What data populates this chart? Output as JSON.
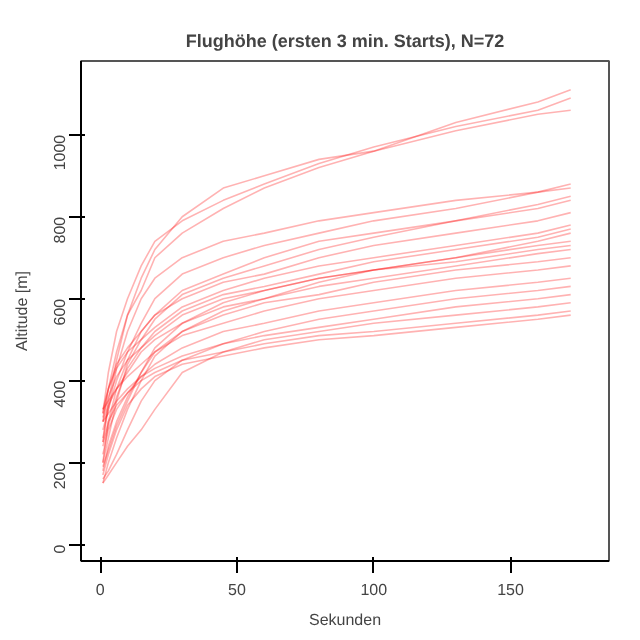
{
  "chart_data": {
    "type": "line",
    "title": "Flughöhe (ersten 3 min. Starts), N=72",
    "xlabel": "Sekunden",
    "ylabel": "Altitude [m]",
    "x": [
      1,
      3,
      6,
      10,
      15,
      20,
      30,
      45,
      60,
      80,
      100,
      130,
      160,
      172
    ],
    "xlim": [
      -7,
      186
    ],
    "ylim": [
      -40,
      1180
    ],
    "xticks": [
      0,
      50,
      100,
      150
    ],
    "yticks": [
      0,
      200,
      400,
      600,
      800,
      1000
    ],
    "grid": false,
    "line_style": "solid",
    "series": [
      {
        "color": "#ff0000",
        "values": [
          300,
          380,
          470,
          560,
          620,
          700,
          760,
          820,
          870,
          920,
          960,
          1030,
          1080,
          1110
        ]
      },
      {
        "color": "#ff0000",
        "values": [
          320,
          420,
          520,
          600,
          680,
          740,
          790,
          840,
          880,
          930,
          970,
          1020,
          1060,
          1090
        ]
      },
      {
        "color": "#ff0000",
        "values": [
          250,
          350,
          450,
          560,
          650,
          720,
          800,
          870,
          900,
          940,
          960,
          1010,
          1050,
          1060
        ]
      },
      {
        "color": "#ff0000",
        "values": [
          200,
          300,
          380,
          450,
          520,
          560,
          620,
          660,
          700,
          740,
          760,
          790,
          820,
          840
        ]
      },
      {
        "color": "#ff0000",
        "values": [
          320,
          380,
          440,
          480,
          520,
          560,
          600,
          640,
          660,
          700,
          730,
          760,
          790,
          810
        ]
      },
      {
        "color": "#ff0000",
        "values": [
          150,
          200,
          260,
          330,
          400,
          460,
          520,
          570,
          600,
          640,
          670,
          700,
          740,
          760
        ]
      },
      {
        "color": "#ff0000",
        "values": [
          300,
          340,
          380,
          420,
          470,
          500,
          540,
          580,
          600,
          630,
          650,
          680,
          710,
          720
        ]
      },
      {
        "color": "#ff0000",
        "values": [
          180,
          240,
          300,
          360,
          420,
          470,
          520,
          560,
          590,
          610,
          640,
          670,
          690,
          700
        ]
      },
      {
        "color": "#ff0000",
        "values": [
          330,
          350,
          380,
          410,
          440,
          470,
          510,
          540,
          570,
          600,
          620,
          650,
          670,
          680
        ]
      },
      {
        "color": "#ff0000",
        "values": [
          220,
          280,
          330,
          370,
          410,
          440,
          480,
          520,
          540,
          570,
          590,
          620,
          640,
          650
        ]
      },
      {
        "color": "#ff0000",
        "values": [
          160,
          180,
          220,
          280,
          350,
          400,
          450,
          490,
          520,
          550,
          570,
          600,
          620,
          630
        ]
      },
      {
        "color": "#ff0000",
        "values": [
          300,
          320,
          350,
          380,
          410,
          430,
          460,
          490,
          510,
          530,
          550,
          580,
          600,
          610
        ]
      },
      {
        "color": "#ff0000",
        "values": [
          150,
          170,
          200,
          240,
          280,
          330,
          420,
          470,
          500,
          520,
          540,
          560,
          580,
          590
        ]
      },
      {
        "color": "#ff0000",
        "values": [
          250,
          300,
          340,
          370,
          400,
          420,
          450,
          470,
          490,
          510,
          520,
          540,
          560,
          570
        ]
      },
      {
        "color": "#ff0000",
        "values": [
          330,
          380,
          430,
          470,
          500,
          530,
          580,
          620,
          650,
          680,
          700,
          730,
          760,
          780
        ]
      },
      {
        "color": "#ff0000",
        "values": [
          200,
          260,
          350,
          440,
          500,
          550,
          610,
          650,
          680,
          720,
          750,
          790,
          830,
          850
        ]
      },
      {
        "color": "#ff0000",
        "values": [
          280,
          330,
          400,
          470,
          540,
          600,
          660,
          700,
          730,
          760,
          790,
          820,
          860,
          880
        ]
      },
      {
        "color": "#ff0000",
        "values": [
          170,
          220,
          280,
          340,
          380,
          410,
          440,
          460,
          480,
          500,
          510,
          530,
          550,
          560
        ]
      },
      {
        "color": "#ff0000",
        "values": [
          310,
          360,
          410,
          450,
          480,
          510,
          560,
          600,
          620,
          650,
          670,
          690,
          720,
          730
        ]
      },
      {
        "color": "#ff0000",
        "values": [
          240,
          290,
          360,
          430,
          480,
          520,
          570,
          610,
          630,
          660,
          690,
          720,
          750,
          770
        ]
      },
      {
        "color": "#ff0000",
        "values": [
          260,
          330,
          430,
          520,
          600,
          650,
          700,
          740,
          760,
          790,
          810,
          840,
          860,
          870
        ]
      },
      {
        "color": "#ff0000",
        "values": [
          190,
          230,
          290,
          350,
          420,
          480,
          540,
          590,
          620,
          650,
          670,
          700,
          730,
          740
        ]
      }
    ]
  }
}
